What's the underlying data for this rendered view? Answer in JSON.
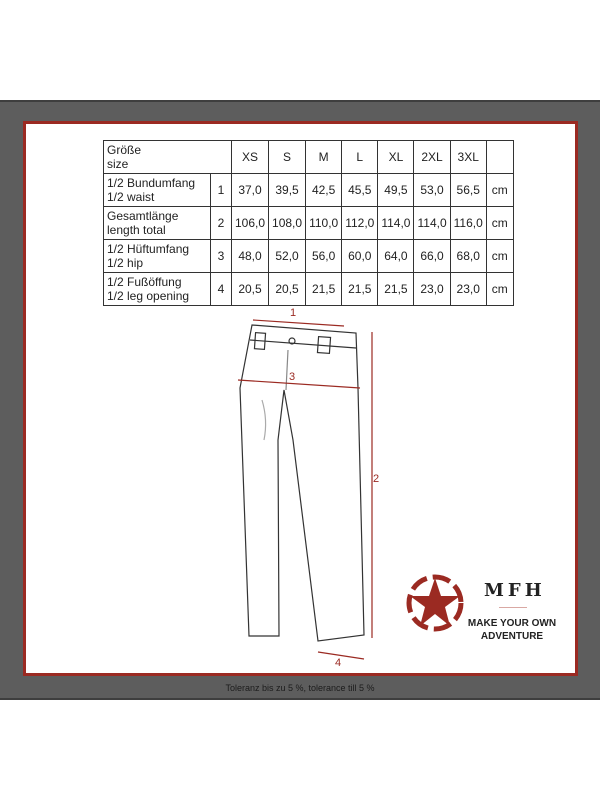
{
  "table": {
    "header": {
      "label_de": "Größe",
      "label_en": "size",
      "sizes": [
        "XS",
        "S",
        "M",
        "L",
        "XL",
        "2XL",
        "3XL"
      ]
    },
    "rows": [
      {
        "label_de": "1/2 Bundumfang",
        "label_en": "1/2 waist",
        "num": "1",
        "values": [
          "37,0",
          "39,5",
          "42,5",
          "45,5",
          "49,5",
          "53,0",
          "56,5"
        ],
        "unit": "cm"
      },
      {
        "label_de": "Gesamtlänge",
        "label_en": "length total",
        "num": "2",
        "values": [
          "106,0",
          "108,0",
          "110,0",
          "112,0",
          "114,0",
          "114,0",
          "116,0"
        ],
        "unit": "cm"
      },
      {
        "label_de": "1/2 Hüftumfang",
        "label_en": "1/2 hip",
        "num": "3",
        "values": [
          "48,0",
          "52,0",
          "56,0",
          "60,0",
          "64,0",
          "66,0",
          "68,0"
        ],
        "unit": "cm"
      },
      {
        "label_de": "1/2 Fußöffung",
        "label_en": "1/2 leg opening",
        "num": "4",
        "values": [
          "20,5",
          "20,5",
          "21,5",
          "21,5",
          "21,5",
          "23,0",
          "23,0"
        ],
        "unit": "cm"
      }
    ]
  },
  "diagram": {
    "labels": [
      "1",
      "2",
      "3",
      "4"
    ],
    "accent": "#9b2a22"
  },
  "logo": {
    "brand": "MFH",
    "slogan_line1": "MAKE YOUR OWN",
    "slogan_line2": "ADVENTURE",
    "icon": "star-in-circle-icon"
  },
  "footer": {
    "tolerance": "Toleranz bis zu 5 %, tolerance till 5 %"
  },
  "colors": {
    "frame": "#5d5d5d",
    "border": "#9b2a22"
  }
}
